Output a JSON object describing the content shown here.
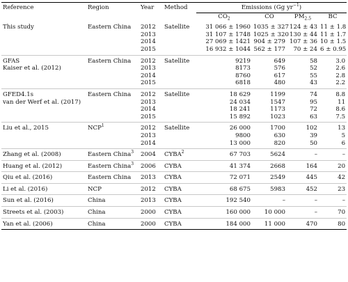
{
  "header": {
    "reference": "Reference",
    "region": "Region",
    "year": "Year",
    "method": "Method",
    "emissions": "Emissions (Gg yr",
    "emissions_sup": "−1",
    "emissions_close": ")",
    "co2": "CO",
    "co2_sub": "2",
    "co": "CO",
    "pm": "PM",
    "pm_sub": "2.5",
    "bc": "BC"
  },
  "rows": [
    {
      "ref": "This study",
      "region": "Eastern China",
      "year": "2012",
      "method": "Satellite",
      "co2": "31 066 ± 1960",
      "co": "1035 ± 327",
      "pm": "124 ± 43",
      "bc": "11 ± 1.8"
    },
    {
      "ref": "",
      "region": "",
      "year": "2013",
      "method": "",
      "co2": "31 107 ± 1748",
      "co": "1025 ± 320",
      "pm": "130 ± 44",
      "bc": "11 ± 1.7"
    },
    {
      "ref": "",
      "region": "",
      "year": "2014",
      "method": "",
      "co2": "27 069 ± 1421",
      "co": "904 ± 279",
      "pm": "107 ± 36",
      "bc": "10 ± 1.5"
    },
    {
      "ref": "",
      "region": "",
      "year": "2015",
      "method": "",
      "co2": "16 932 ± 1044",
      "co": "562 ± 177",
      "pm": "70 ± 24",
      "bc": "6 ± 0.95"
    },
    {
      "ref": "GFAS",
      "region": "Eastern China",
      "year": "2012",
      "method": "Satellite",
      "co2": "9219",
      "co": "649",
      "pm": "58",
      "bc": "3.0"
    },
    {
      "ref": "Kaiser et al. (2012)",
      "region": "",
      "year": "2013",
      "method": "",
      "co2": "8173",
      "co": "576",
      "pm": "52",
      "bc": "2.6"
    },
    {
      "ref": "",
      "region": "",
      "year": "2014",
      "method": "",
      "co2": "8760",
      "co": "617",
      "pm": "55",
      "bc": "2.8"
    },
    {
      "ref": "",
      "region": "",
      "year": "2015",
      "method": "",
      "co2": "6818",
      "co": "480",
      "pm": "43",
      "bc": "2.2"
    },
    {
      "ref": "GFED4.1s",
      "region": "Eastern China",
      "year": "2012",
      "method": "Satellite",
      "co2": "18 629",
      "co": "1199",
      "pm": "74",
      "bc": "8.8"
    },
    {
      "ref": "van der Werf et al. (2017)",
      "region": "",
      "year": "2013",
      "method": "",
      "co2": "24 034",
      "co": "1547",
      "pm": "95",
      "bc": "11"
    },
    {
      "ref": "",
      "region": "",
      "year": "2014",
      "method": "",
      "co2": "18 241",
      "co": "1173",
      "pm": "72",
      "bc": "8.6"
    },
    {
      "ref": "",
      "region": "",
      "year": "2015",
      "method": "",
      "co2": "15 892",
      "co": "1023",
      "pm": "63",
      "bc": "7.5"
    },
    {
      "ref": "Liu et al., 2015",
      "region": "NCP",
      "region_sup": "1",
      "year": "2012",
      "method": "Satellite",
      "co2": "26 000",
      "co": "1700",
      "pm": "102",
      "bc": "13"
    },
    {
      "ref": "",
      "region": "",
      "year": "2013",
      "method": "",
      "co2": "9800",
      "co": "630",
      "pm": "39",
      "bc": "5"
    },
    {
      "ref": "",
      "region": "",
      "year": "2014",
      "method": "",
      "co2": "13 000",
      "co": "820",
      "pm": "50",
      "bc": "6"
    },
    {
      "ref": "Zhang et al. (2008)",
      "region": "Eastern China",
      "region_sup": "3",
      "year": "2004",
      "method": "CYBA",
      "method_sup": "2",
      "co2": "67 703",
      "co": "5624",
      "pm": "–",
      "bc": "–"
    },
    {
      "ref": "Huang et al. (2012)",
      "region": "Eastern China",
      "region_sup": "3",
      "year": "2006",
      "method": "CYBA",
      "co2": "41 374",
      "co": "2668",
      "pm": "164",
      "bc": "20"
    },
    {
      "ref": "Qiu et al. (2016)",
      "region": "Eastern China",
      "year": "2013",
      "method": "CYBA",
      "co2": "72 071",
      "co": "2549",
      "pm": "445",
      "bc": "42"
    },
    {
      "ref": "Li et al. (2016)",
      "region": "NCP",
      "year": "2012",
      "method": "CYBA",
      "co2": "68 675",
      "co": "5983",
      "pm": "452",
      "bc": "23"
    },
    {
      "ref": "Sun et al. (2016)",
      "region": "China",
      "year": "2013",
      "method": "CYBA",
      "co2": "192 540",
      "co": "–",
      "pm": "–",
      "bc": "–"
    },
    {
      "ref": "Streets et al. (2003)",
      "region": "China",
      "year": "2000",
      "method": "CYBA",
      "co2": "160 000",
      "co": "10 000",
      "pm": "–",
      "bc": "70"
    },
    {
      "ref": "Yan et al. (2006)",
      "region": "China",
      "year": "2000",
      "method": "CYBA",
      "co2": "184 000",
      "co": "11 000",
      "pm": "470",
      "bc": "80"
    }
  ]
}
